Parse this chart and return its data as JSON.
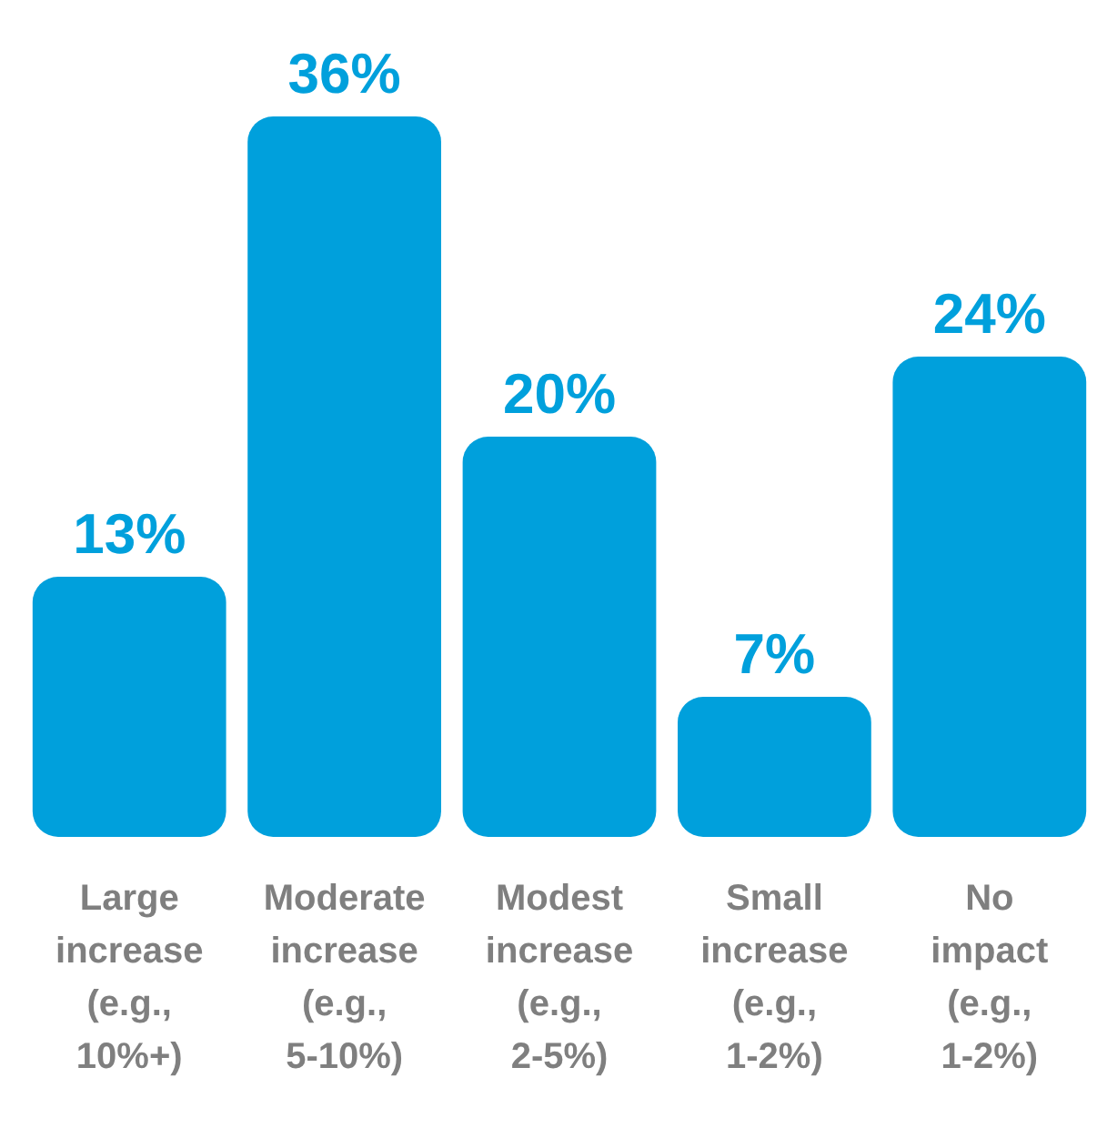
{
  "chart_data": {
    "type": "bar",
    "categories": [
      "Large increase (e.g., 10%+)",
      "Moderate increase (e.g., 5-10%)",
      "Modest increase (e.g., 2-5%)",
      "Small increase (e.g., 1-2%)",
      "No impact (e.g., 1-2%)"
    ],
    "values": [
      13,
      36,
      20,
      7,
      24
    ],
    "value_labels": [
      "13%",
      "36%",
      "20%",
      "7%",
      "24%"
    ],
    "color": "#00a0dc",
    "grid": false,
    "legend": false
  }
}
